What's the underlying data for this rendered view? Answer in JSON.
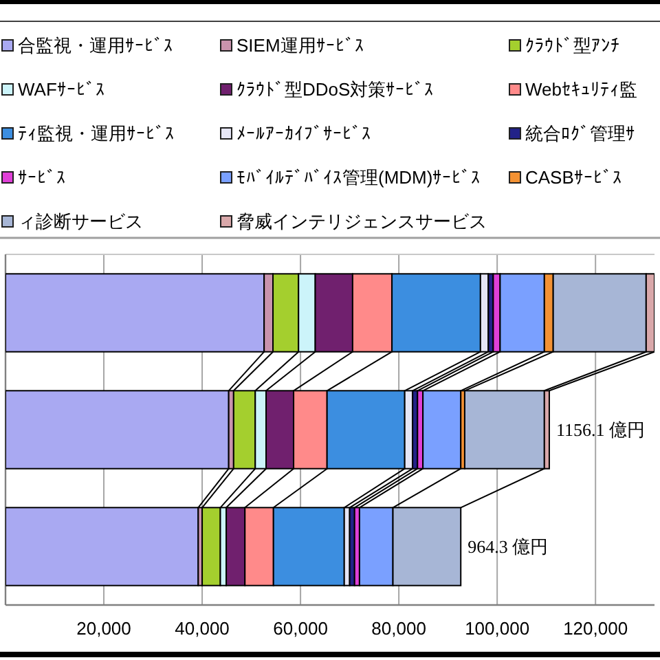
{
  "chart_data": {
    "type": "bar",
    "orientation": "horizontal",
    "stacked": true,
    "categories": [
      null,
      null,
      null
    ],
    "series": [
      {
        "name": "合監視・運用ｻｰﾋﾞｽ",
        "color": "#a9a9f2",
        "values": [
          52600,
          45400,
          39200
        ]
      },
      {
        "name": "SIEM運用ｻｰﾋﾞｽ",
        "color": "#c993ad",
        "values": [
          1800,
          1000,
          800
        ]
      },
      {
        "name": "ｸﾗｳﾄﾞ型ｱﾝﾁ",
        "color": "#a4cf2e",
        "values": [
          5200,
          4400,
          3700
        ]
      },
      {
        "name": "WAFｻｰﾋﾞｽ",
        "color": "#ccf4fa",
        "values": [
          3400,
          2200,
          1200
        ]
      },
      {
        "name": "ｸﾗｳﾄﾞ型DDoS対策ｻｰﾋﾞｽ",
        "color": "#70206e",
        "values": [
          7600,
          5600,
          3800
        ]
      },
      {
        "name": "Webｾｷｭﾘﾃｨ監",
        "color": "#ff8a8a",
        "values": [
          8000,
          6800,
          5800
        ]
      },
      {
        "name": "ﾃｨ監視・運用ｻｰﾋﾞｽ",
        "color": "#3c8ee0",
        "values": [
          18000,
          15800,
          14400
        ]
      },
      {
        "name": "ﾒｰﾙｱｰｶｲﾌﾞｻｰﾋﾞｽ",
        "color": "#e6e6f6",
        "values": [
          1600,
          1600,
          1100
        ]
      },
      {
        "name": "統合ﾛｸﾞ管理ｻ",
        "color": "#222288",
        "values": [
          1000,
          1000,
          1000
        ]
      },
      {
        "name": "ｻｰﾋﾞｽ",
        "color": "#e040d8",
        "values": [
          1400,
          1100,
          1000
        ]
      },
      {
        "name": "ﾓﾊﾞｲﾙﾃﾞﾊﾞｲｽ管理(MDM)ｻｰﾋﾞｽ",
        "color": "#7aa0ff",
        "values": [
          9000,
          7700,
          6800
        ]
      },
      {
        "name": "CASBｻｰﾋﾞｽ",
        "color": "#f39234",
        "values": [
          1800,
          800,
          null
        ]
      },
      {
        "name": "ィ診断サービス",
        "color": "#a7b6d6",
        "values": [
          18900,
          16200,
          13800
        ]
      },
      {
        "name": "脅威インテリジェンスサービス",
        "color": "#d9a8aa",
        "values": [
          1700,
          1000,
          null
        ]
      }
    ],
    "xlim": [
      0,
      132000
    ],
    "xticks": [
      {
        "value": 20000,
        "label": "20,000"
      },
      {
        "value": 40000,
        "label": "40,000"
      },
      {
        "value": 60000,
        "label": "60,000"
      },
      {
        "value": 80000,
        "label": "80,000"
      },
      {
        "value": 100000,
        "label": "100,000"
      },
      {
        "value": 120000,
        "label": "120,000"
      }
    ],
    "tick_labels": "x",
    "grid": "x",
    "legend": "top",
    "annotations": [
      {
        "text": "1156.1 億円",
        "x": 110600
      },
      {
        "text": "964.3 億円",
        "x": 92600
      }
    ]
  }
}
